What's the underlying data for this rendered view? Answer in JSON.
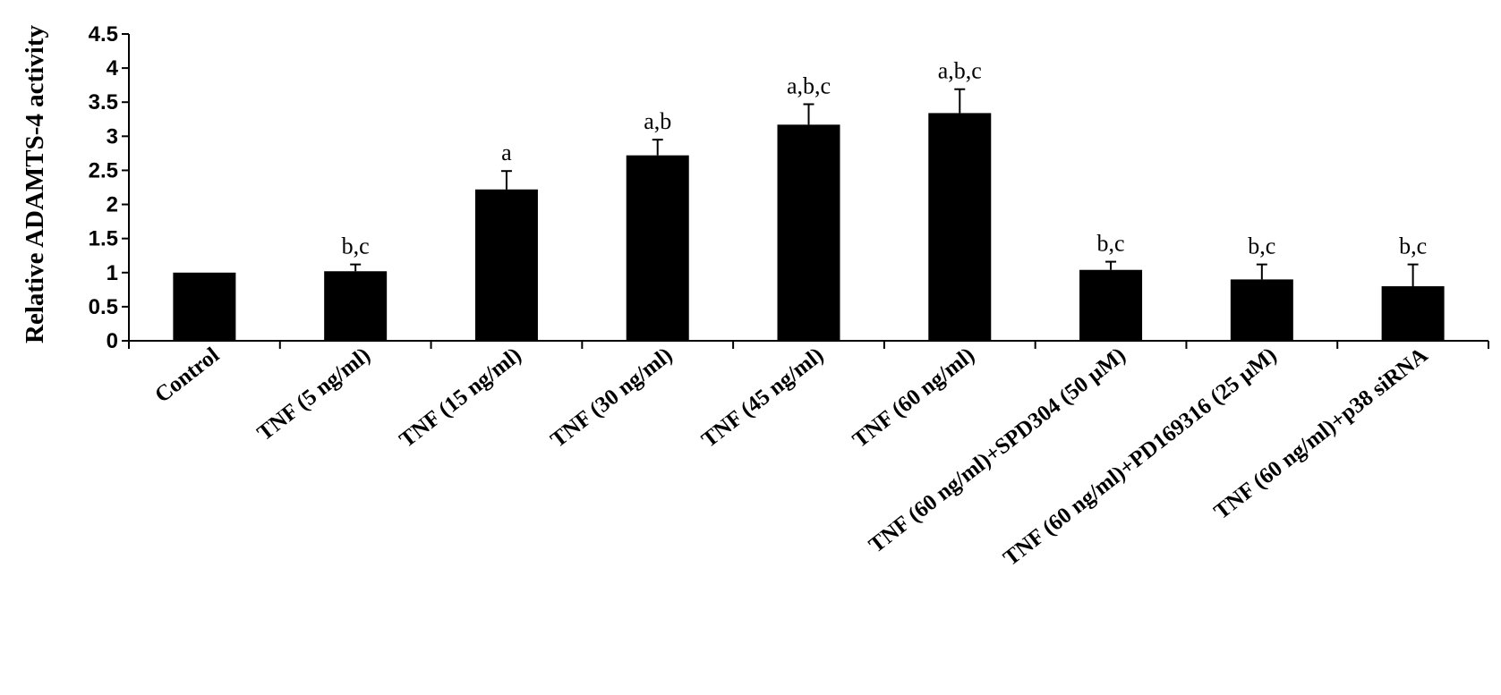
{
  "chart_data": {
    "type": "bar",
    "title": "",
    "xlabel": "",
    "ylabel": "Relative ADAMTS-4 activity",
    "ylim": [
      0,
      4.5
    ],
    "yticks": [
      "0",
      "0.5",
      "1",
      "1.5",
      "2",
      "2.5",
      "3",
      "3.5",
      "4",
      "4.5"
    ],
    "categories": [
      "Control",
      "TNF (5 ng/ml)",
      "TNF (15 ng/ml)",
      "TNF (30 ng/ml)",
      "TNF (45 ng/ml)",
      "TNF (60 ng/ml)",
      "TNF (60 ng/ml)+SPD304 (50 µM)",
      "TNF (60 ng/ml)+PD169316 (25 µM)",
      "TNF (60 ng/ml)+p38 siRNA"
    ],
    "values": [
      1.0,
      1.02,
      2.22,
      2.72,
      3.17,
      3.34,
      1.04,
      0.9,
      0.8
    ],
    "errors": [
      0.0,
      0.1,
      0.27,
      0.23,
      0.3,
      0.35,
      0.12,
      0.22,
      0.32
    ],
    "annotations": [
      "",
      "b,c",
      "a",
      "a,b",
      "a,b,c",
      "a,b,c",
      "b,c",
      "b,c",
      "b,c"
    ],
    "grid": false,
    "legend": "none",
    "bar_color": "#000000"
  }
}
